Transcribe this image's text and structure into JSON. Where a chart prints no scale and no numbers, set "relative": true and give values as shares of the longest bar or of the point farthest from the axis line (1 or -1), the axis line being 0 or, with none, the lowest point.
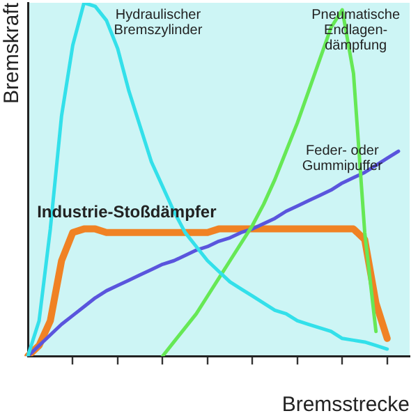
{
  "chart_data": {
    "type": "line",
    "relative": true,
    "xlabel": "Bremsstrecke",
    "ylabel": "Bremskraft",
    "marker": "none",
    "legend": false,
    "categories": [
      null,
      null,
      null,
      null,
      null,
      null,
      null,
      null,
      null,
      null,
      null,
      null,
      null,
      null,
      null,
      null,
      null,
      null,
      null,
      null,
      null,
      null,
      null,
      null,
      null,
      null,
      null,
      null,
      null,
      null,
      null,
      null,
      null,
      null,
      null
    ],
    "series": [
      {
        "name": "Hydraulischer Bremszylinder",
        "color": "#33e0ea",
        "values": [
          0,
          0.1,
          0.36,
          0.68,
          0.88,
          1.0,
          0.99,
          0.95,
          0.87,
          0.75,
          0.65,
          0.55,
          0.48,
          0.41,
          0.35,
          0.31,
          0.27,
          0.24,
          0.21,
          0.19,
          0.17,
          0.15,
          0.13,
          0.12,
          0.1,
          0.09,
          0.08,
          0.07,
          0.05,
          0.045,
          0.04,
          0.03,
          0.02,
          null,
          null
        ]
      },
      {
        "name": "Pneumatische Endlagen-dämpfung",
        "color": "#66e855",
        "values": [
          null,
          null,
          null,
          null,
          null,
          null,
          null,
          null,
          null,
          null,
          null,
          null,
          0,
          0.04,
          0.08,
          0.12,
          0.17,
          0.22,
          0.27,
          0.32,
          0.37,
          0.43,
          0.5,
          0.58,
          0.66,
          0.75,
          0.84,
          0.93,
          0.98,
          0.8,
          0.35,
          0.07,
          null,
          null,
          null
        ]
      },
      {
        "name": "Feder- oder Gummipuffer",
        "color": "#5a55dd",
        "values": [
          0,
          0.03,
          0.06,
          0.09,
          0.115,
          0.14,
          0.165,
          0.185,
          0.2,
          0.215,
          0.23,
          0.245,
          0.26,
          0.27,
          0.285,
          0.3,
          0.31,
          0.325,
          0.335,
          0.35,
          0.36,
          0.375,
          0.39,
          0.41,
          0.425,
          0.44,
          0.455,
          0.47,
          0.49,
          0.505,
          0.52,
          0.54,
          0.56,
          0.58,
          null
        ]
      },
      {
        "name": "Industrie-Stoßdämpfer",
        "color": "#f08224",
        "values": [
          0,
          0.03,
          0.1,
          0.27,
          0.35,
          0.36,
          0.36,
          0.35,
          0.35,
          0.35,
          0.35,
          0.35,
          0.35,
          0.35,
          0.35,
          0.35,
          0.35,
          0.36,
          0.36,
          0.36,
          0.36,
          0.36,
          0.36,
          0.36,
          0.36,
          0.36,
          0.36,
          0.36,
          0.36,
          0.36,
          0.33,
          0.15,
          0.05,
          null,
          null
        ]
      }
    ]
  }
}
